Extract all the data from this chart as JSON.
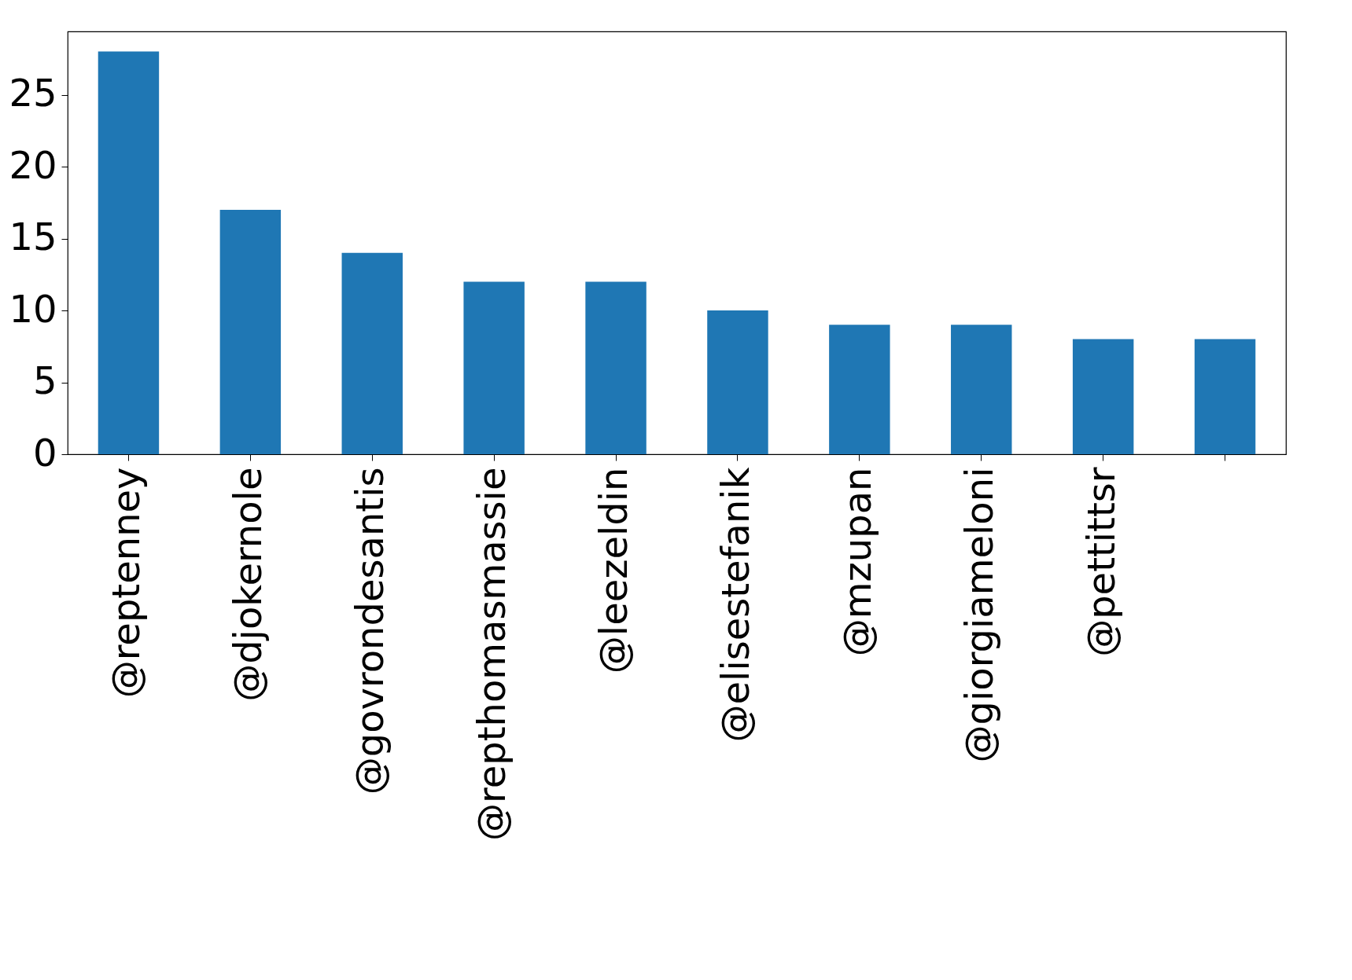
{
  "chart_data": {
    "type": "bar",
    "categories": [
      "@reptenney",
      "@djokernole",
      "@govrondesantis",
      "@repthomasmassie",
      "@leezeldin",
      "@elisestefanik",
      "@mzupan",
      "@giorgiameloni",
      "@pettittsr",
      null
    ],
    "values": [
      28,
      17,
      14,
      12,
      12,
      10,
      9,
      9,
      8,
      8
    ],
    "color": "#1f77b4",
    "ylim": [
      0,
      29.4
    ],
    "yticks": [
      0,
      5,
      10,
      15,
      20,
      25
    ]
  }
}
